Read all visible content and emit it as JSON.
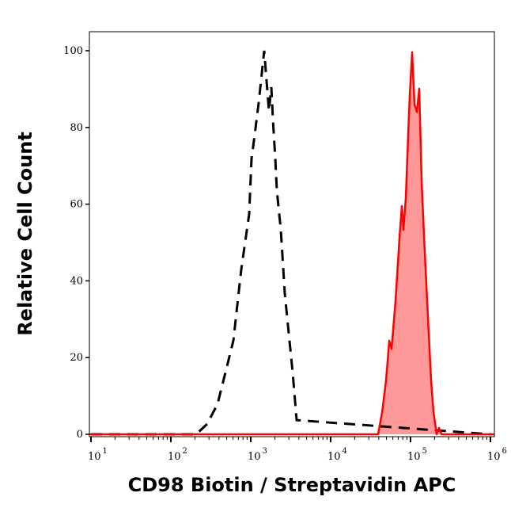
{
  "chart_data": {
    "type": "area",
    "title": "",
    "xlabel": "CD98 Biotin / Streptavidin APC",
    "ylabel": "Relative Cell Count",
    "xscale": "log",
    "xlim": [
      8,
      1200000
    ],
    "ylim": [
      0,
      105
    ],
    "x_ticks": [
      {
        "base": "10",
        "exp": "1",
        "value": 10
      },
      {
        "base": "10",
        "exp": "2",
        "value": 100
      },
      {
        "base": "10",
        "exp": "3",
        "value": 1000
      },
      {
        "base": "10",
        "exp": "4",
        "value": 10000
      },
      {
        "base": "10",
        "exp": "5",
        "value": 100000
      },
      {
        "base": "10",
        "exp": "6",
        "value": 1000000
      }
    ],
    "y_ticks": [
      0,
      20,
      40,
      60,
      80,
      100
    ],
    "grid": false,
    "legend": "none",
    "series": [
      {
        "style": "dashed-line",
        "color": "#000000",
        "x": [
          10,
          208,
          285,
          384,
          482,
          605,
          760,
          955,
          1023,
          1122,
          1257,
          1473,
          1690,
          1808,
          1893,
          2028,
          2124,
          2377,
          2667,
          2985,
          3350,
          3751,
          1000000
        ],
        "y": [
          0,
          0,
          2.7,
          7.9,
          16.1,
          24.4,
          43.0,
          57.4,
          71.9,
          78.1,
          86.4,
          100,
          84.3,
          90.5,
          82.2,
          71.9,
          63.6,
          53.3,
          36.8,
          26.4,
          16.1,
          3.7,
          0
        ]
      },
      {
        "style": "filled",
        "color": "#ff0000",
        "fill": "#ff9999",
        "x": [
          8,
          39300,
          44100,
          49300,
          54100,
          57800,
          64900,
          72600,
          77800,
          81500,
          87300,
          93300,
          97700,
          104700,
          112200,
          120000,
          128500,
          137700,
          147200,
          161400,
          180900,
          193800,
          212300,
          227200,
          243200,
          1200000
        ],
        "y": [
          0,
          0,
          5.8,
          14.0,
          24.4,
          22.3,
          34.7,
          51.2,
          59.5,
          53.3,
          61.6,
          78.1,
          88.4,
          99.6,
          86.0,
          84.0,
          90.1,
          66.1,
          51.7,
          34.7,
          14.0,
          5.8,
          0,
          1.7,
          0,
          0
        ]
      }
    ]
  }
}
